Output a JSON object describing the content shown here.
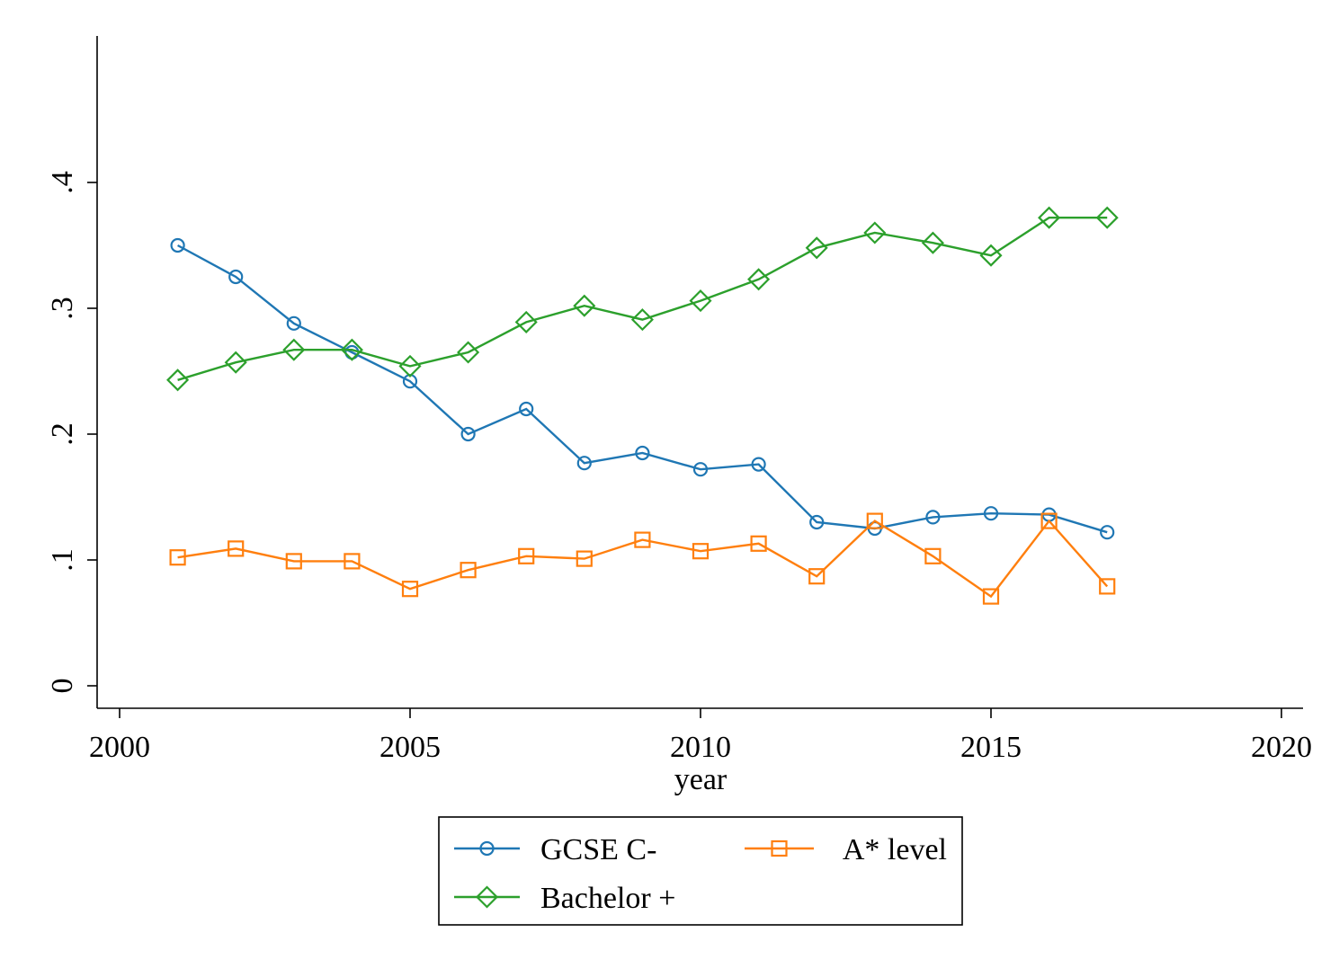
{
  "chart_data": {
    "type": "line",
    "title": "",
    "xlabel": "year",
    "ylabel": "",
    "xlim": [
      2000,
      2020
    ],
    "ylim": [
      0,
      0.5
    ],
    "x_ticks": [
      {
        "value": 2000,
        "label": "2000"
      },
      {
        "value": 2005,
        "label": "2005"
      },
      {
        "value": 2010,
        "label": "2010"
      },
      {
        "value": 2015,
        "label": "2015"
      },
      {
        "value": 2020,
        "label": "2020"
      }
    ],
    "y_ticks": [
      {
        "value": 0,
        "label": "0"
      },
      {
        "value": 0.1,
        "label": ".1"
      },
      {
        "value": 0.2,
        "label": ".2"
      },
      {
        "value": 0.3,
        "label": ".3"
      },
      {
        "value": 0.4,
        "label": ".4"
      }
    ],
    "grid": false,
    "legend_position": "bottom",
    "x": [
      2001,
      2002,
      2003,
      2004,
      2005,
      2006,
      2007,
      2008,
      2009,
      2010,
      2011,
      2012,
      2013,
      2014,
      2015,
      2016,
      2017
    ],
    "series": [
      {
        "name": "GCSE C-",
        "color": "#1f77b4",
        "marker": "circle",
        "values": [
          0.35,
          0.325,
          0.288,
          0.265,
          0.242,
          0.2,
          0.22,
          0.177,
          0.185,
          0.172,
          0.176,
          0.13,
          0.125,
          0.134,
          0.137,
          0.136,
          0.122
        ]
      },
      {
        "name": "A* level",
        "color": "#ff7f0e",
        "marker": "square",
        "values": [
          0.102,
          0.109,
          0.099,
          0.099,
          0.077,
          0.092,
          0.103,
          0.101,
          0.116,
          0.107,
          0.113,
          0.087,
          0.131,
          0.103,
          0.071,
          0.131,
          0.079
        ]
      },
      {
        "name": "Bachelor +",
        "color": "#2ca02c",
        "marker": "diamond",
        "values": [
          0.243,
          0.257,
          0.267,
          0.267,
          0.254,
          0.265,
          0.289,
          0.302,
          0.291,
          0.306,
          0.323,
          0.348,
          0.36,
          0.352,
          0.342,
          0.372,
          0.372
        ]
      }
    ]
  }
}
